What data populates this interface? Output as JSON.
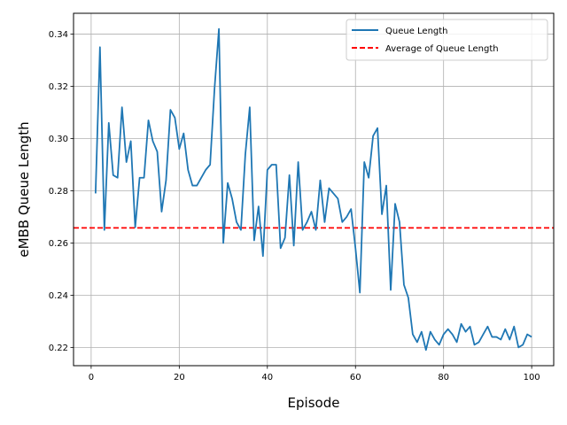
{
  "chart_data": {
    "type": "line",
    "title": "",
    "xlabel": "Episode",
    "ylabel": "eMBB Queue Length",
    "xlim": [
      -4,
      105
    ],
    "ylim": [
      0.213,
      0.348
    ],
    "xticks": [
      0,
      20,
      40,
      60,
      80,
      100
    ],
    "yticks": [
      0.22,
      0.24,
      0.26,
      0.28,
      0.3,
      0.32,
      0.34
    ],
    "xtick_labels": [
      "0",
      "20",
      "40",
      "60",
      "80",
      "100"
    ],
    "ytick_labels": [
      "0.22",
      "0.24",
      "0.26",
      "0.28",
      "0.30",
      "0.32",
      "0.34"
    ],
    "grid": true,
    "legend_position": "upper right",
    "series": [
      {
        "name": "Queue Length",
        "color": "#1f77b4",
        "style": "solid",
        "x": [
          1,
          2,
          3,
          4,
          5,
          6,
          7,
          8,
          9,
          10,
          11,
          12,
          13,
          14,
          15,
          16,
          17,
          18,
          19,
          20,
          21,
          22,
          23,
          24,
          25,
          26,
          27,
          28,
          29,
          30,
          31,
          32,
          33,
          34,
          35,
          36,
          37,
          38,
          39,
          40,
          41,
          42,
          43,
          44,
          45,
          46,
          47,
          48,
          49,
          50,
          51,
          52,
          53,
          54,
          55,
          56,
          57,
          58,
          59,
          60,
          61,
          62,
          63,
          64,
          65,
          66,
          67,
          68,
          69,
          70,
          71,
          72,
          73,
          74,
          75,
          76,
          77,
          78,
          79,
          80,
          81,
          82,
          83,
          84,
          85,
          86,
          87,
          88,
          89,
          90,
          91,
          92,
          93,
          94,
          95,
          96,
          97,
          98,
          99,
          100
        ],
        "y": [
          0.279,
          0.335,
          0.265,
          0.306,
          0.286,
          0.285,
          0.312,
          0.291,
          0.299,
          0.266,
          0.285,
          0.285,
          0.307,
          0.299,
          0.295,
          0.272,
          0.284,
          0.311,
          0.308,
          0.296,
          0.302,
          0.288,
          0.282,
          0.282,
          0.285,
          0.288,
          0.29,
          0.319,
          0.342,
          0.26,
          0.283,
          0.277,
          0.268,
          0.265,
          0.294,
          0.312,
          0.261,
          0.274,
          0.255,
          0.288,
          0.29,
          0.29,
          0.258,
          0.262,
          0.286,
          0.259,
          0.291,
          0.265,
          0.268,
          0.272,
          0.265,
          0.284,
          0.268,
          0.281,
          0.279,
          0.277,
          0.268,
          0.27,
          0.273,
          0.258,
          0.241,
          0.291,
          0.285,
          0.301,
          0.304,
          0.271,
          0.282,
          0.242,
          0.275,
          0.268,
          0.244,
          0.239,
          0.225,
          0.222,
          0.226,
          0.219,
          0.226,
          0.223,
          0.221,
          0.225,
          0.227,
          0.225,
          0.222,
          0.229,
          0.226,
          0.228,
          0.221,
          0.222,
          0.225,
          0.228,
          0.224,
          0.224,
          0.223,
          0.227,
          0.223,
          0.228,
          0.22,
          0.221,
          0.225,
          0.224
        ]
      },
      {
        "name": "Average of Queue Length",
        "color": "#ff0000",
        "style": "dashed",
        "constant": 0.2658
      }
    ]
  }
}
